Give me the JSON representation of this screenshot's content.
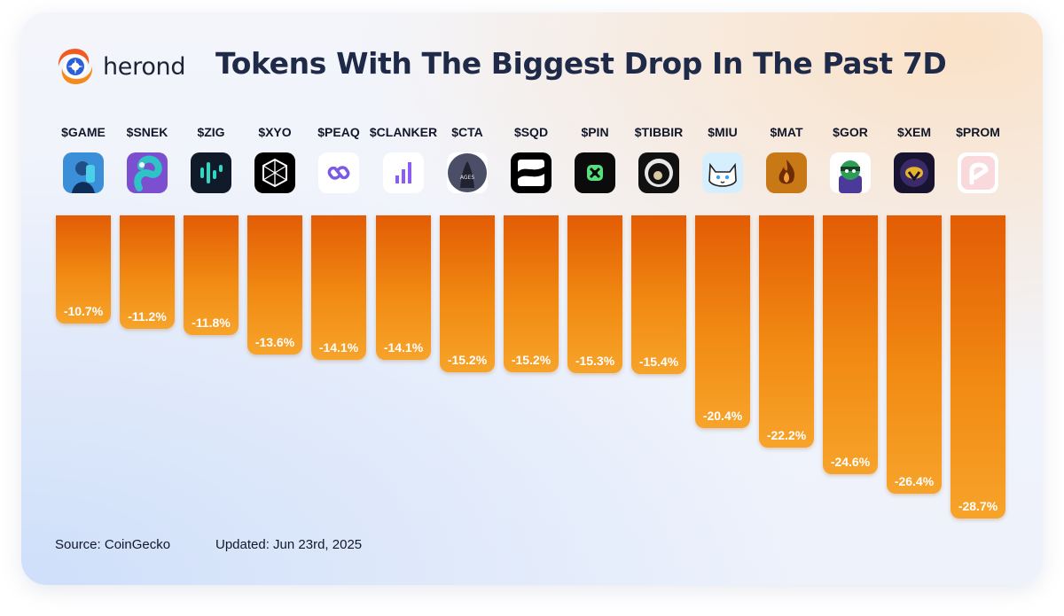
{
  "brand": {
    "name": "herond",
    "accent": "#f07a12"
  },
  "title": "Tokens With The Biggest Drop In The Past 7D",
  "footer": {
    "source": "Source: CoinGecko",
    "updated": "Updated: Jun 23rd, 2025"
  },
  "chart_data": {
    "type": "bar",
    "orientation": "vertical-downward",
    "bar_color": "#ee7a10",
    "categories": [
      "$GAME",
      "$SNEK",
      "$ZIG",
      "$XYO",
      "$PEAQ",
      "$CLANKER",
      "$CTA",
      "$SQD",
      "$PIN",
      "$TIBBIR",
      "$MIU",
      "$MAT",
      "$GOR",
      "$XEM",
      "$PROM"
    ],
    "values": [
      -10.7,
      -11.2,
      -11.8,
      -13.6,
      -14.1,
      -14.1,
      -15.2,
      -15.2,
      -15.3,
      -15.4,
      -20.4,
      -22.2,
      -24.6,
      -26.4,
      -28.7
    ],
    "labels": [
      "-10.7%",
      "-11.2%",
      "-11.8%",
      "-13.6%",
      "-14.1%",
      "-14.1%",
      "-15.2%",
      "-15.2%",
      "-15.3%",
      "-15.4%",
      "-20.4%",
      "-22.2%",
      "-24.6%",
      "-26.4%",
      "-28.7%"
    ],
    "icons": [
      "game-icon",
      "snek-icon",
      "zig-icon",
      "xyo-icon",
      "peaq-icon",
      "clanker-icon",
      "cta-icon",
      "sqd-icon",
      "pin-icon",
      "tibbir-icon",
      "miu-icon",
      "mat-icon",
      "gor-icon",
      "xem-icon",
      "prom-icon"
    ],
    "xlabel": "",
    "ylabel": "",
    "grid": false,
    "legend": "none"
  }
}
